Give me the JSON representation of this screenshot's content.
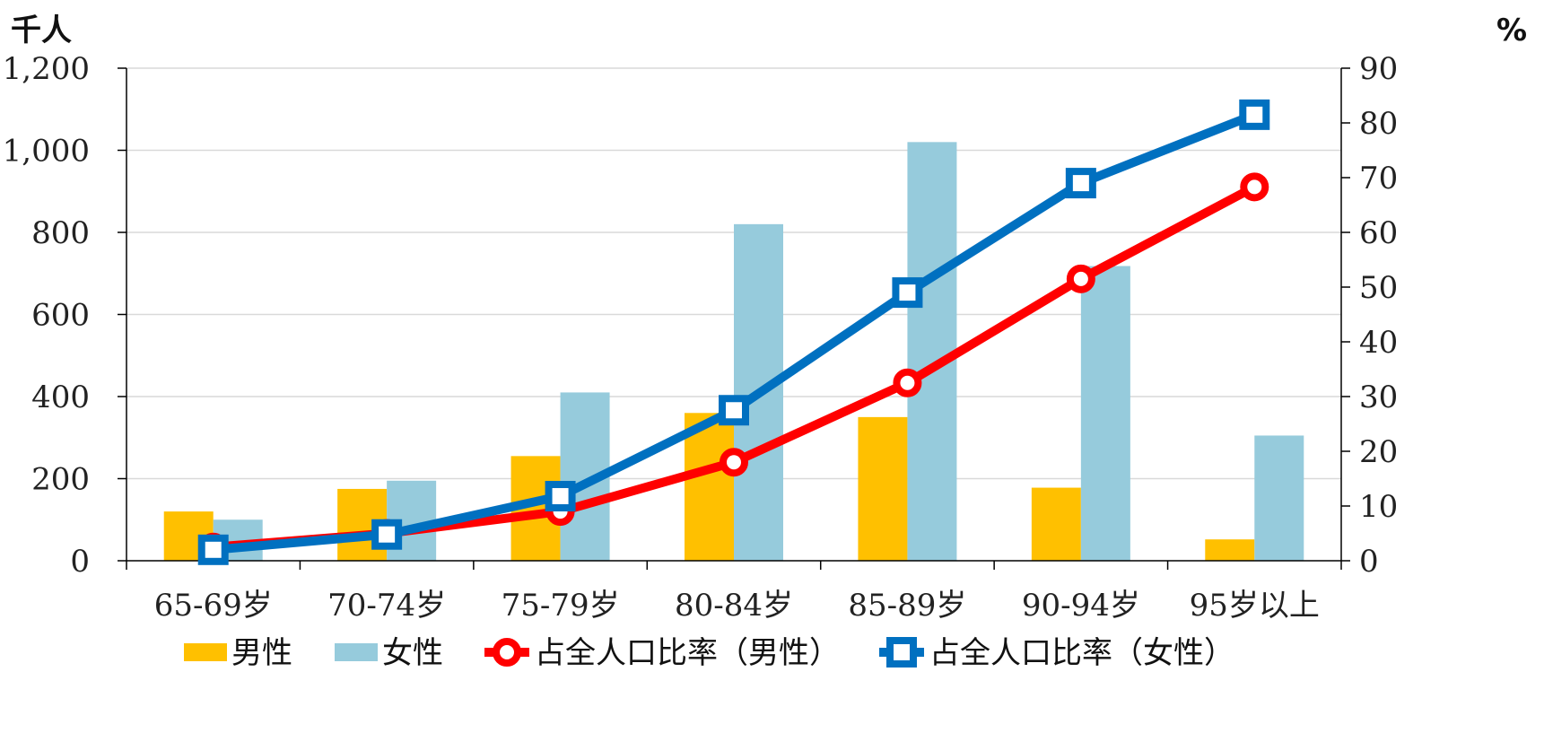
{
  "chart_data": {
    "type": "bar",
    "categories": [
      "65-69岁",
      "70-74岁",
      "75-79岁",
      "80-84岁",
      "85-89岁",
      "90-94岁",
      "95岁以上"
    ],
    "left_axis": {
      "unit": "千人",
      "min": 0,
      "max": 1200,
      "step": 200,
      "ticks": [
        "0",
        "200",
        "400",
        "600",
        "800",
        "1,000",
        "1,200"
      ]
    },
    "right_axis": {
      "unit": "%",
      "min": 0,
      "max": 90,
      "step": 10,
      "ticks": [
        "0",
        "10",
        "20",
        "30",
        "40",
        "50",
        "60",
        "70",
        "80",
        "90"
      ]
    },
    "grid": true,
    "legend_position": "bottom",
    "series": [
      {
        "name": "男性",
        "type": "bar",
        "axis": "left",
        "color": "#FFC000",
        "values": [
          120,
          175,
          255,
          360,
          350,
          178,
          52
        ]
      },
      {
        "name": "女性",
        "type": "bar",
        "axis": "left",
        "color": "#96CBDC",
        "values": [
          100,
          195,
          410,
          820,
          1020,
          718,
          305
        ]
      },
      {
        "name": "占全人口比率（男性）",
        "type": "line",
        "axis": "right",
        "marker": "circle",
        "color": "#FF0000",
        "values": [
          2.5,
          5.0,
          9.0,
          18.0,
          32.5,
          51.5,
          68.3
        ]
      },
      {
        "name": "占全人口比率（女性）",
        "type": "line",
        "axis": "right",
        "marker": "square",
        "color": "#0070C0",
        "values": [
          2.0,
          4.8,
          11.8,
          27.5,
          49.0,
          69.0,
          81.5
        ]
      }
    ]
  }
}
